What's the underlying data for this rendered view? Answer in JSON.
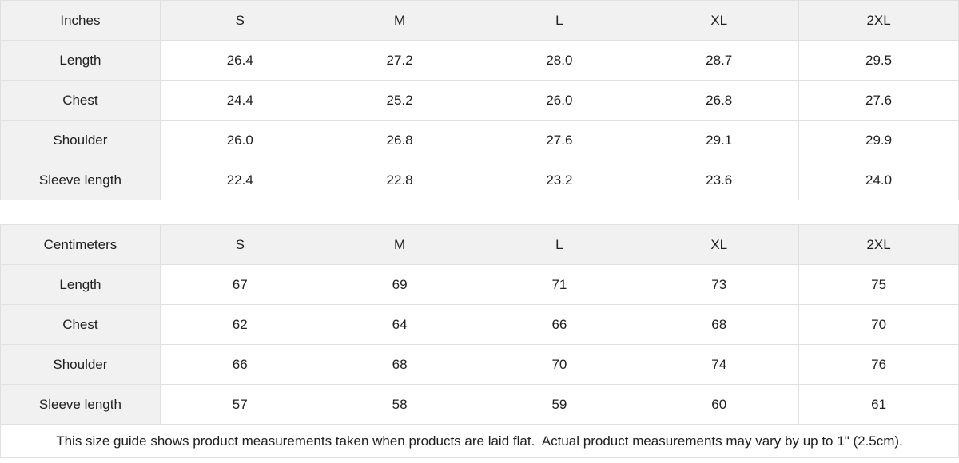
{
  "tables": [
    {
      "unit_label": "Inches",
      "columns": [
        "S",
        "M",
        "L",
        "XL",
        "2XL"
      ],
      "rows": [
        {
          "label": "Length",
          "values": [
            "26.4",
            "27.2",
            "28.0",
            "28.7",
            "29.5"
          ]
        },
        {
          "label": "Chest",
          "values": [
            "24.4",
            "25.2",
            "26.0",
            "26.8",
            "27.6"
          ]
        },
        {
          "label": "Shoulder",
          "values": [
            "26.0",
            "26.8",
            "27.6",
            "29.1",
            "29.9"
          ]
        },
        {
          "label": "Sleeve length",
          "values": [
            "22.4",
            "22.8",
            "23.2",
            "23.6",
            "24.0"
          ]
        }
      ]
    },
    {
      "unit_label": "Centimeters",
      "columns": [
        "S",
        "M",
        "L",
        "XL",
        "2XL"
      ],
      "rows": [
        {
          "label": "Length",
          "values": [
            "67",
            "69",
            "71",
            "73",
            "75"
          ]
        },
        {
          "label": "Chest",
          "values": [
            "62",
            "64",
            "66",
            "68",
            "70"
          ]
        },
        {
          "label": "Shoulder",
          "values": [
            "66",
            "68",
            "70",
            "74",
            "76"
          ]
        },
        {
          "label": "Sleeve length",
          "values": [
            "57",
            "58",
            "59",
            "60",
            "61"
          ]
        }
      ]
    }
  ],
  "footer": {
    "note": "This size guide shows product measurements taken when products are laid flat.  Actual product measurements may vary by up to 1\" (2.5cm)."
  },
  "colors": {
    "header_bg": "#f1f1f1",
    "cell_bg": "#ffffff",
    "border": "#e0e0e0",
    "text": "#202020"
  }
}
